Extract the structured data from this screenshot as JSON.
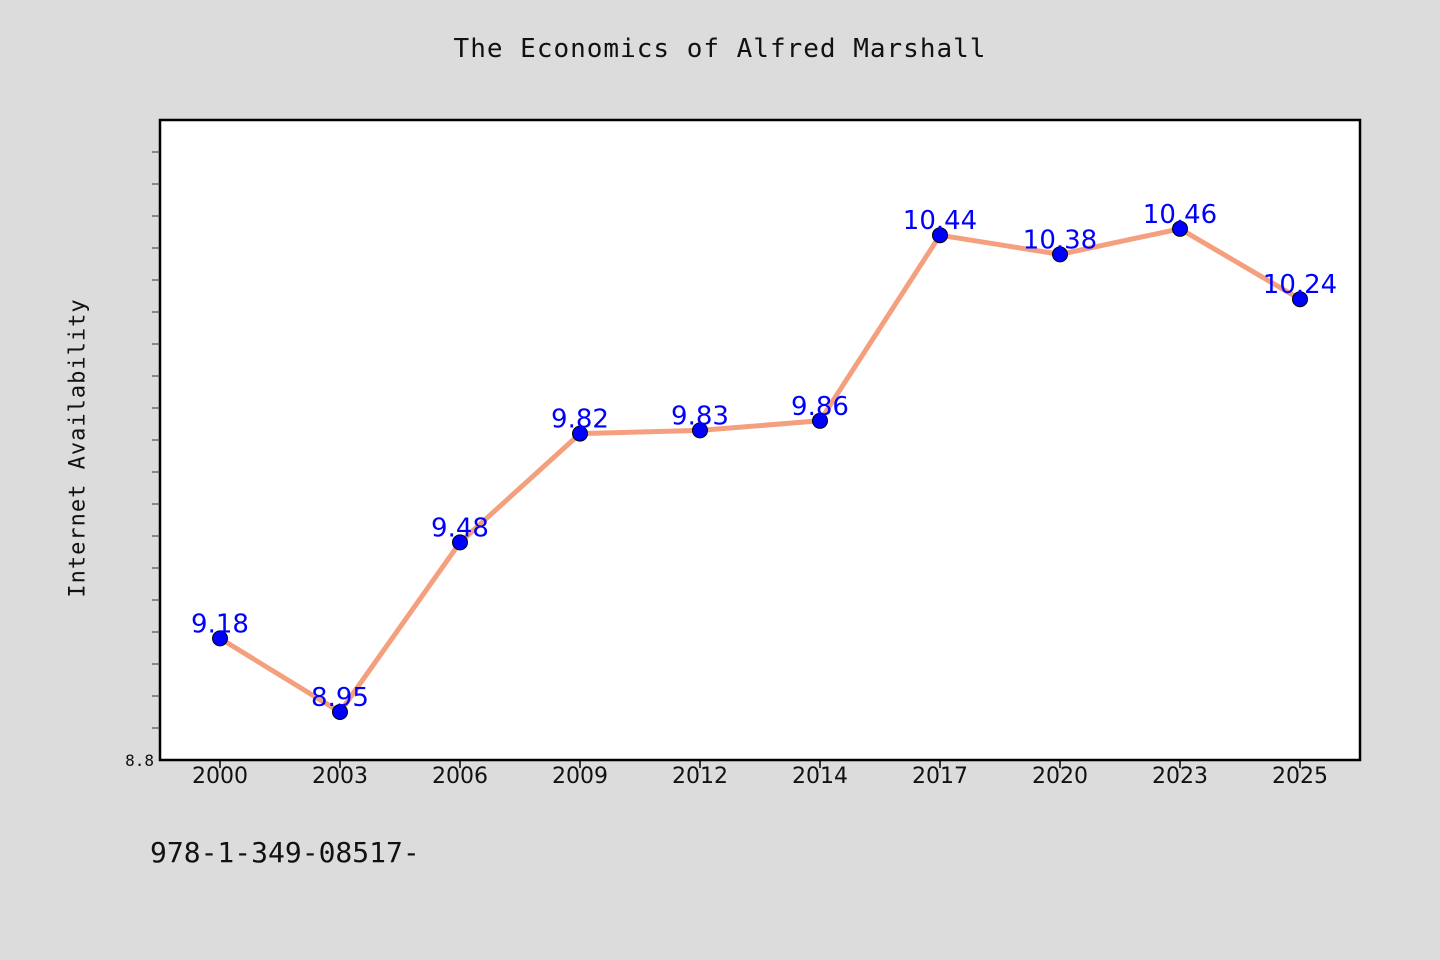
{
  "chart_data": {
    "type": "line",
    "title": "The Economics of Alfred Marshall",
    "ylabel": "Internet Availability",
    "xlabel": "",
    "categories": [
      "2000",
      "2003",
      "2006",
      "2009",
      "2012",
      "2014",
      "2017",
      "2020",
      "2023",
      "2025"
    ],
    "series": [
      {
        "values": [
          9.18,
          8.95,
          9.48,
          9.82,
          9.83,
          9.86,
          10.44,
          10.38,
          10.46,
          10.24
        ]
      }
    ],
    "ylim": [
      8.8,
      10.8
    ],
    "y_tick_label": "8.8",
    "grid": false,
    "line_color": "#f4a07e",
    "marker_color": "#0000ff",
    "label_color": "#0000ff",
    "plot_background": "#ffffff",
    "page_background": "#dcdcdc"
  },
  "caption": "978-1-349-08517-"
}
